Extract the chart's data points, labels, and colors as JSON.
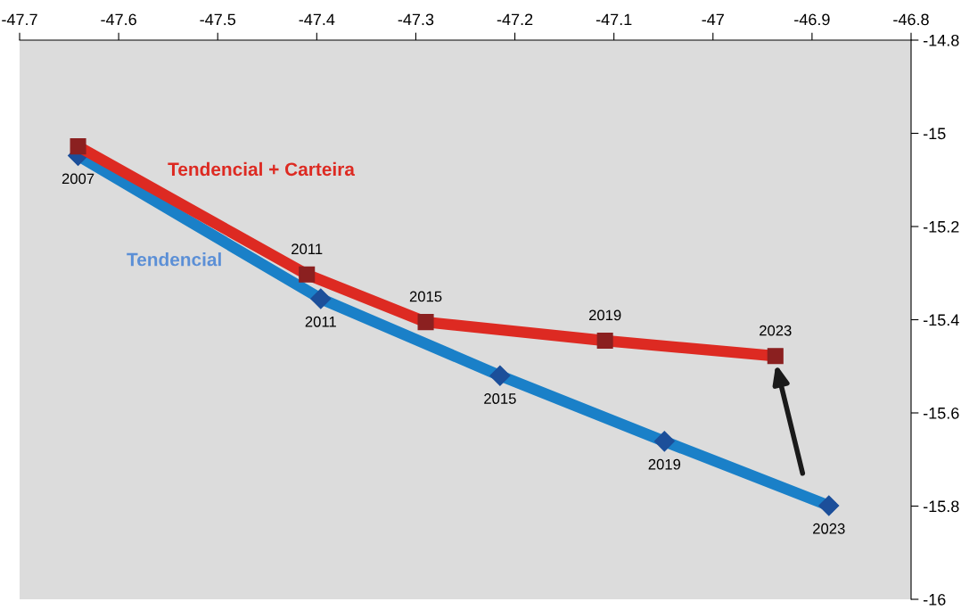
{
  "chart_data": {
    "type": "line",
    "xlim": [
      -47.7,
      -46.8
    ],
    "ylim": [
      -16,
      -14.8
    ],
    "xticks": [
      -47.7,
      -47.6,
      -47.5,
      -47.4,
      -47.3,
      -47.2,
      -47.1,
      {
        "value": -47,
        "label": "-47"
      },
      -46.9,
      -46.8
    ],
    "yticks": [
      {
        "value": -16,
        "label": "-16"
      },
      -15.8,
      -15.6,
      -15.4,
      -15.2,
      {
        "value": -15,
        "label": "-15"
      },
      -14.8
    ],
    "grid": false,
    "legend": false,
    "line_style": "solid",
    "series": [
      {
        "name": "Tendencial + Carteira",
        "color": "#dd2a22",
        "marker": "square",
        "x": [
          -47.641,
          -47.41,
          -47.29,
          -47.109,
          -46.937
        ],
        "values": [
          -15.028,
          -15.303,
          -15.405,
          -15.445,
          -15.478
        ]
      },
      {
        "name": "Tendencial",
        "color": "#1a80c8",
        "marker": "diamond",
        "x": [
          -47.641,
          -47.396,
          -47.215,
          -47.049,
          -46.883
        ],
        "values": [
          -15.048,
          -15.355,
          -15.52,
          -15.661,
          -15.799
        ]
      }
    ],
    "annotations": [
      {
        "text": "2007",
        "x": -47.641,
        "y": -15.048
      },
      {
        "text": "2011",
        "x": -47.41,
        "y": -15.303
      },
      {
        "text": "2011",
        "x": -47.396,
        "y": -15.355
      },
      {
        "text": "2015",
        "x": -47.29,
        "y": -15.405
      },
      {
        "text": "2015",
        "x": -47.215,
        "y": -15.52
      },
      {
        "text": "2019",
        "x": -47.109,
        "y": -15.445
      },
      {
        "text": "2019",
        "x": -47.049,
        "y": -15.661
      },
      {
        "text": "2023",
        "x": -46.937,
        "y": -15.478
      },
      {
        "text": "2023",
        "x": -46.883,
        "y": -15.799
      }
    ]
  }
}
